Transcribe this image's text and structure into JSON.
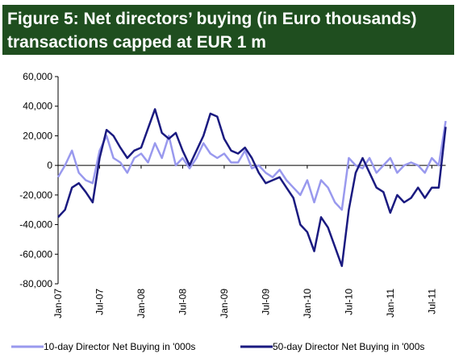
{
  "chart_data": {
    "type": "line",
    "title": "Figure 5: Net directors’ buying (in Euro thousands)",
    "subtitle": "transactions capped at EUR 1 m",
    "x": [
      "Jan-07",
      null,
      null,
      null,
      null,
      null,
      "Jul-07",
      null,
      null,
      null,
      null,
      null,
      "Jan-08",
      null,
      null,
      null,
      null,
      null,
      "Jul-08",
      null,
      null,
      null,
      null,
      null,
      "Jan-09",
      null,
      null,
      null,
      null,
      null,
      "Jul-09",
      null,
      null,
      null,
      null,
      null,
      "Jan-10",
      null,
      null,
      null,
      null,
      null,
      "Jul-10",
      null,
      null,
      null,
      null,
      null,
      "Jan-11",
      null,
      null,
      null,
      null,
      null,
      "Jul-11",
      null,
      null
    ],
    "series": [
      {
        "name": "10-day Director Net Buying in '000s",
        "color": "#9999ee",
        "values": [
          -8000,
          0,
          10000,
          -5000,
          -10000,
          -12000,
          10000,
          20000,
          5000,
          2000,
          -5000,
          5000,
          8000,
          2000,
          15000,
          5000,
          20000,
          0,
          5000,
          -2000,
          5000,
          15000,
          8000,
          5000,
          8000,
          2000,
          2000,
          10000,
          -2000,
          0,
          -5000,
          -8000,
          -3000,
          -10000,
          -15000,
          -20000,
          -10000,
          -25000,
          -10000,
          -15000,
          -25000,
          -30000,
          5000,
          0,
          -2000,
          5000,
          -5000,
          0,
          5000,
          -5000,
          0,
          2000,
          0,
          -5000,
          5000,
          0,
          30000
        ]
      },
      {
        "name": "50-day Director Net Buying in '000s",
        "color": "#1a1a80",
        "values": [
          -35000,
          -30000,
          -15000,
          -12000,
          -18000,
          -25000,
          5000,
          24000,
          20000,
          12000,
          5000,
          10000,
          12000,
          25000,
          38000,
          22000,
          18000,
          22000,
          10000,
          0,
          10000,
          20000,
          35000,
          33000,
          18000,
          10000,
          8000,
          12000,
          5000,
          -5000,
          -12000,
          -10000,
          -8000,
          -15000,
          -22000,
          -40000,
          -45000,
          -58000,
          -35000,
          -42000,
          -55000,
          -68000,
          -30000,
          -5000,
          5000,
          -5000,
          -15000,
          -18000,
          -32000,
          -20000,
          -25000,
          -22000,
          -15000,
          -22000,
          -15000,
          -15000,
          26000
        ]
      }
    ],
    "ylim": [
      -80000,
      60000
    ],
    "yticks": [
      {
        "value": -80000,
        "label": "-80,000"
      },
      {
        "value": -60000,
        "label": "-60,000"
      },
      {
        "value": -40000,
        "label": "-40,000"
      },
      {
        "value": -20000,
        "label": "-20,000"
      },
      0,
      {
        "value": 20000,
        "label": "20,000"
      },
      {
        "value": 40000,
        "label": "40,000"
      },
      {
        "value": 60000,
        "label": "60,000"
      }
    ],
    "legend": "bottom"
  }
}
